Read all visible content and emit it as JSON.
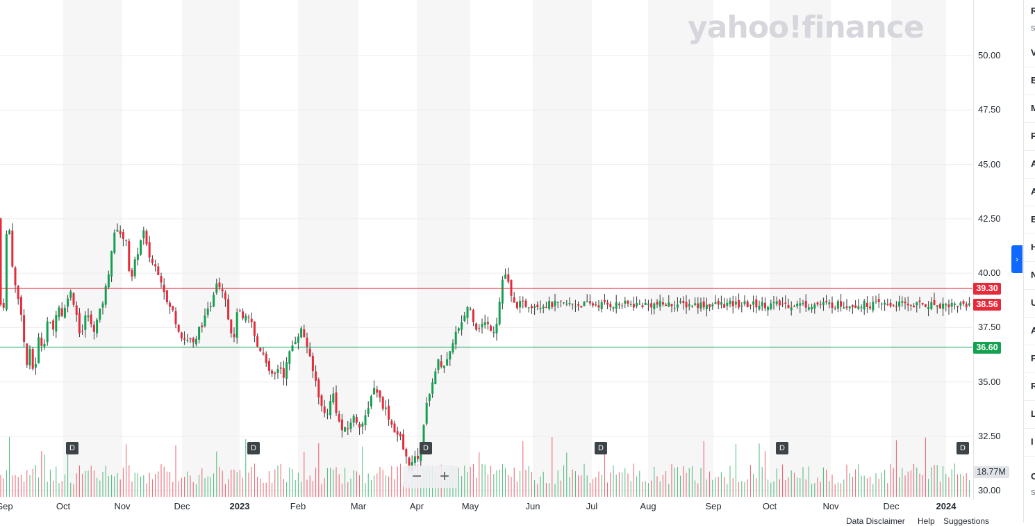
{
  "watermark": "yahoo!finance",
  "chart_data": {
    "type": "candlestick",
    "ylim": [
      30.0,
      52.5
    ],
    "y_ticks": [
      "50.00",
      "47.50",
      "45.00",
      "42.50",
      "40.00",
      "37.50",
      "35.00",
      "32.50",
      "30.00"
    ],
    "x_ticks": [
      {
        "label": "Sep",
        "bold": false
      },
      {
        "label": "Oct",
        "bold": false
      },
      {
        "label": "Nov",
        "bold": false
      },
      {
        "label": "Dec",
        "bold": false
      },
      {
        "label": "2023",
        "bold": true
      },
      {
        "label": "Feb",
        "bold": false
      },
      {
        "label": "Mar",
        "bold": false
      },
      {
        "label": "Apr",
        "bold": false
      },
      {
        "label": "May",
        "bold": false
      },
      {
        "label": "Jun",
        "bold": false
      },
      {
        "label": "Jul",
        "bold": false
      },
      {
        "label": "Aug",
        "bold": false
      },
      {
        "label": "Sep",
        "bold": false
      },
      {
        "label": "Oct",
        "bold": false
      },
      {
        "label": "Nov",
        "bold": false
      },
      {
        "label": "Dec",
        "bold": false
      },
      {
        "label": "2024",
        "bold": true
      }
    ],
    "price_path": [
      [
        0,
        42.5
      ],
      [
        0.02,
        41.5
      ],
      [
        0.06,
        42.6
      ],
      [
        0.1,
        41.2
      ],
      [
        0.16,
        39.6
      ],
      [
        0.22,
        38.9
      ],
      [
        0.3,
        38.0
      ],
      [
        0.36,
        35.5
      ],
      [
        0.42,
        36.5
      ],
      [
        0.5,
        35.3
      ],
      [
        0.58,
        37.0
      ],
      [
        0.66,
        36.6
      ],
      [
        0.74,
        38.0
      ],
      [
        0.82,
        37.2
      ],
      [
        0.9,
        38.6
      ],
      [
        1.0,
        38.0
      ],
      [
        1.1,
        39.3
      ],
      [
        1.2,
        38.5
      ],
      [
        1.3,
        37.0
      ],
      [
        1.4,
        38.3
      ],
      [
        1.5,
        37.3
      ],
      [
        1.6,
        38.0
      ],
      [
        1.7,
        39.0
      ],
      [
        1.76,
        39.9
      ],
      [
        1.84,
        41.5
      ],
      [
        1.94,
        42.3
      ],
      [
        2.0,
        41.3
      ],
      [
        2.06,
        41.8
      ],
      [
        2.14,
        39.4
      ],
      [
        2.22,
        40.6
      ],
      [
        2.3,
        41.4
      ],
      [
        2.36,
        41.9
      ],
      [
        2.42,
        41.0
      ],
      [
        2.5,
        40.5
      ],
      [
        2.6,
        40.1
      ],
      [
        2.68,
        39.5
      ],
      [
        2.76,
        38.5
      ],
      [
        2.84,
        38.3
      ],
      [
        2.92,
        37.6
      ],
      [
        3.0,
        37.1
      ],
      [
        3.06,
        36.9
      ],
      [
        3.14,
        37.0
      ],
      [
        3.22,
        36.6
      ],
      [
        3.3,
        37.5
      ],
      [
        3.4,
        37.9
      ],
      [
        3.5,
        38.6
      ],
      [
        3.6,
        39.7
      ],
      [
        3.66,
        39.4
      ],
      [
        3.74,
        39.2
      ],
      [
        3.8,
        38.0
      ],
      [
        3.86,
        37.3
      ],
      [
        3.9,
        36.8
      ],
      [
        3.96,
        38.5
      ],
      [
        4.04,
        37.8
      ],
      [
        4.12,
        37.9
      ],
      [
        4.2,
        37.8
      ],
      [
        4.28,
        36.7
      ],
      [
        4.36,
        36.5
      ],
      [
        4.44,
        36.2
      ],
      [
        4.52,
        35.2
      ],
      [
        4.6,
        35.3
      ],
      [
        4.68,
        35.8
      ],
      [
        4.76,
        35.3
      ],
      [
        4.84,
        36.2
      ],
      [
        4.92,
        36.8
      ],
      [
        5.0,
        37.2
      ],
      [
        5.06,
        37.4
      ],
      [
        5.14,
        36.8
      ],
      [
        5.22,
        35.7
      ],
      [
        5.3,
        35.0
      ],
      [
        5.36,
        34.2
      ],
      [
        5.42,
        33.5
      ],
      [
        5.5,
        33.7
      ],
      [
        5.58,
        34.5
      ],
      [
        5.66,
        33.3
      ],
      [
        5.74,
        32.7
      ],
      [
        5.82,
        32.8
      ],
      [
        5.9,
        33.4
      ],
      [
        5.98,
        33.2
      ],
      [
        6.04,
        33.0
      ],
      [
        6.1,
        33.2
      ],
      [
        6.16,
        33.6
      ],
      [
        6.24,
        34.8
      ],
      [
        6.32,
        34.6
      ],
      [
        6.4,
        34.0
      ],
      [
        6.48,
        33.7
      ],
      [
        6.56,
        33.1
      ],
      [
        6.64,
        32.7
      ],
      [
        6.72,
        32.4
      ],
      [
        6.8,
        31.6
      ],
      [
        6.88,
        31.1
      ],
      [
        6.96,
        31.4
      ],
      [
        7.04,
        31.6
      ],
      [
        7.1,
        32.3
      ],
      [
        7.16,
        34.0
      ],
      [
        7.24,
        34.3
      ],
      [
        7.3,
        35.2
      ],
      [
        7.4,
        35.9
      ],
      [
        7.5,
        35.8
      ],
      [
        7.6,
        36.0
      ],
      [
        7.7,
        37.2
      ],
      [
        7.8,
        37.4
      ],
      [
        7.86,
        37.7
      ],
      [
        7.92,
        38.4
      ],
      [
        7.98,
        38.5
      ],
      [
        8.04,
        38.0
      ],
      [
        8.1,
        37.5
      ],
      [
        8.16,
        37.6
      ],
      [
        8.24,
        37.7
      ],
      [
        8.32,
        37.5
      ],
      [
        8.4,
        37.4
      ],
      [
        8.46,
        38.5
      ],
      [
        8.52,
        39.8
      ],
      [
        8.58,
        40.0
      ],
      [
        8.62,
        39.3
      ],
      [
        8.68,
        38.56
      ]
    ],
    "volume_label": "Volume",
    "price_lines": [
      {
        "value": 39.3,
        "label": "39.30",
        "color": "#e62a3a"
      },
      {
        "value": 38.56,
        "label": "38.56",
        "color": "#e62a3a"
      },
      {
        "value": 36.6,
        "label": "36.60",
        "color": "#12a150"
      }
    ],
    "dividend_marker": "D",
    "current_volume": "18.77M",
    "up_color": "#12a150",
    "down_color": "#e62a3a"
  },
  "zoom": {
    "minus": "−",
    "plus": "+"
  },
  "panel_toggle_icon": "›",
  "right_panel": {
    "items": [
      "R",
      "V",
      "E",
      "M",
      "P",
      "A",
      "A",
      "E",
      "H",
      "N",
      "U",
      "A",
      "P",
      "R",
      "L",
      "I",
      "C"
    ],
    "small": [
      "Sy",
      "Sy"
    ]
  },
  "footer": {
    "disclaimer": "Data Disclaimer",
    "help": "Help",
    "suggestions": "Suggestions"
  }
}
